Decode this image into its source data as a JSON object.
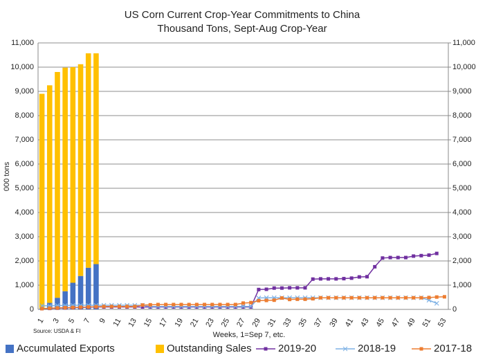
{
  "chart_data": {
    "type": "bar",
    "stacked": true,
    "title": "US Corn Current Crop-Year Commitments to China",
    "subtitle": "Thousand Tons, Sept-Aug Crop-Year",
    "y_label": "000 tons",
    "x_label": "Weeks, 1=Sep 7, etc.",
    "source": "Source: USDA & FI",
    "categories": [
      "1",
      null,
      "3",
      null,
      "5",
      null,
      "7",
      null,
      "9",
      null,
      "11",
      null,
      "13",
      null,
      "15",
      null,
      "17",
      null,
      "19",
      null,
      "21",
      null,
      "23",
      null,
      "25",
      null,
      "27",
      null,
      "29",
      null,
      "31",
      null,
      "33",
      null,
      "35",
      null,
      "37",
      null,
      "39",
      null,
      "41",
      null,
      "43",
      null,
      "45",
      null,
      "47",
      null,
      "49",
      null,
      "51",
      null,
      "53"
    ],
    "ylim": [
      0,
      11000
    ],
    "yticks": [
      0,
      {
        "value": 1000,
        "label": "1,000"
      },
      {
        "value": 2000,
        "label": "2,000"
      },
      {
        "value": 3000,
        "label": "3,000"
      },
      {
        "value": 4000,
        "label": "4,000"
      },
      {
        "value": 5000,
        "label": "5,000"
      },
      {
        "value": 6000,
        "label": "6,000"
      },
      {
        "value": 7000,
        "label": "7,000"
      },
      {
        "value": 8000,
        "label": "8,000"
      },
      {
        "value": 9000,
        "label": "9,000"
      },
      {
        "value": 10000,
        "label": "10,000"
      },
      {
        "value": 11000,
        "label": "11,000"
      }
    ],
    "y2lim": [
      0,
      11000
    ],
    "y2ticks": [
      0,
      {
        "value": 1000,
        "label": "1,000"
      },
      {
        "value": 2000,
        "label": "2,000"
      },
      {
        "value": 3000,
        "label": "3,000"
      },
      {
        "value": 4000,
        "label": "4,000"
      },
      {
        "value": 5000,
        "label": "5,000"
      },
      {
        "value": 6000,
        "label": "6,000"
      },
      {
        "value": 7000,
        "label": "7,000"
      },
      {
        "value": 8000,
        "label": "8,000"
      },
      {
        "value": 9000,
        "label": "9,000"
      },
      {
        "value": 10000,
        "label": "10,000"
      },
      {
        "value": 11000,
        "label": "11,000"
      }
    ],
    "grid": true,
    "legend": "bottom",
    "series": [
      {
        "name": "Accumulated Exports",
        "type": "bar",
        "color": "#4472c4",
        "values": [
          30,
          270,
          480,
          750,
          1100,
          1380,
          1720,
          1870,
          null,
          null,
          null,
          null,
          null,
          null,
          null,
          null,
          null,
          null,
          null,
          null,
          null,
          null,
          null,
          null,
          null,
          null,
          null,
          null,
          null,
          null,
          null,
          null,
          null,
          null,
          null,
          null,
          null,
          null,
          null,
          null,
          null,
          null,
          null,
          null,
          null,
          null,
          null,
          null,
          null,
          null,
          null,
          null,
          null
        ]
      },
      {
        "name": "Outstanding Sales",
        "type": "bar",
        "color": "#ffc000",
        "values": [
          8870,
          8980,
          9320,
          9230,
          8900,
          8740,
          8850,
          8700,
          null,
          null,
          null,
          null,
          null,
          null,
          null,
          null,
          null,
          null,
          null,
          null,
          null,
          null,
          null,
          null,
          null,
          null,
          null,
          null,
          null,
          null,
          null,
          null,
          null,
          null,
          null,
          null,
          null,
          null,
          null,
          null,
          null,
          null,
          null,
          null,
          null,
          null,
          null,
          null,
          null,
          null,
          null,
          null,
          null
        ]
      },
      {
        "name": "2019-20",
        "type": "line",
        "marker": "square",
        "color": "#7030a0",
        "values": [
          30,
          40,
          50,
          60,
          70,
          80,
          90,
          100,
          100,
          100,
          100,
          100,
          100,
          100,
          100,
          100,
          100,
          100,
          100,
          100,
          100,
          100,
          100,
          100,
          100,
          100,
          100,
          100,
          820,
          830,
          880,
          880,
          890,
          890,
          890,
          1250,
          1260,
          1260,
          1260,
          1270,
          1290,
          1340,
          1350,
          1760,
          2120,
          2140,
          2140,
          2140,
          2200,
          2220,
          2240,
          2310,
          null
        ]
      },
      {
        "name": "2018-19",
        "type": "line",
        "marker": "x",
        "color": "#7fb2e5",
        "values": [
          150,
          150,
          160,
          160,
          170,
          170,
          170,
          170,
          170,
          170,
          170,
          170,
          170,
          170,
          120,
          120,
          120,
          120,
          120,
          120,
          120,
          120,
          120,
          120,
          120,
          120,
          120,
          120,
          470,
          480,
          480,
          480,
          480,
          480,
          480,
          480,
          480,
          480,
          480,
          480,
          480,
          480,
          480,
          480,
          480,
          480,
          480,
          480,
          480,
          480,
          380,
          250,
          null
        ]
      },
      {
        "name": "2017-18",
        "type": "line",
        "marker": "square",
        "color": "#ed7d31",
        "values": [
          30,
          50,
          60,
          70,
          80,
          90,
          100,
          110,
          120,
          120,
          120,
          120,
          120,
          180,
          190,
          200,
          200,
          200,
          200,
          200,
          200,
          200,
          200,
          200,
          200,
          200,
          260,
          280,
          360,
          370,
          380,
          470,
          410,
          420,
          420,
          440,
          480,
          480,
          480,
          480,
          480,
          480,
          480,
          480,
          480,
          480,
          480,
          480,
          480,
          480,
          490,
          510,
          520
        ]
      }
    ]
  }
}
